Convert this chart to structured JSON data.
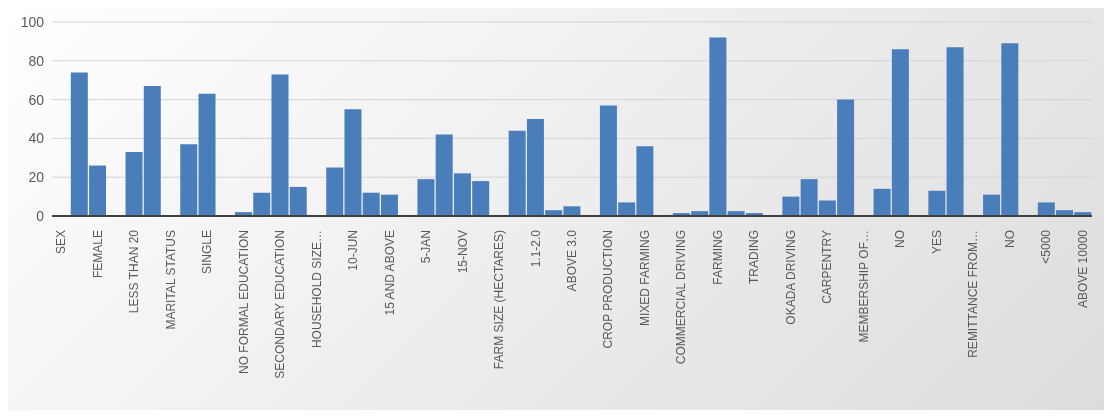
{
  "chart_data": {
    "type": "bar",
    "categories": [
      "SEX",
      null,
      "FEMALE",
      null,
      "LESS THAN 20",
      null,
      "MARITAL STATUS",
      null,
      "SINGLE",
      null,
      "NO FORMAL EDUCATION",
      null,
      "SECONDARY EDUCATION",
      null,
      "HOUSEHOLD SIZE…",
      null,
      "10-JUN",
      null,
      "15 AND ABOVE",
      null,
      "5-JAN",
      null,
      "15-NOV",
      null,
      "FARM SIZE (HECTARES)",
      null,
      "1.1-2.0",
      null,
      "ABOVE 3.0",
      null,
      "CROP PRODUCTION",
      null,
      "MIXED FARMING",
      null,
      "COMMERCIAL DRIVING",
      null,
      "FARMING",
      null,
      "TRADING",
      null,
      "OKADA DRIVING",
      null,
      "CARPENTRY",
      null,
      "MEMBERSHIP OF…",
      null,
      "NO",
      null,
      "YES",
      null,
      "REMITTANCE FROM…",
      null,
      "NO",
      null,
      "<5000",
      null,
      "ABOVE 10000"
    ],
    "values": [
      0,
      74,
      26,
      0,
      33,
      67,
      0,
      37,
      63,
      0,
      2,
      12,
      73,
      15,
      0,
      25,
      55,
      12,
      11,
      0,
      19,
      42,
      22,
      18,
      0,
      44,
      50,
      3,
      5,
      0,
      57,
      7,
      36,
      0,
      1.5,
      2.5,
      92,
      2.5,
      1.5,
      0,
      10,
      19,
      8,
      60,
      0,
      14,
      86,
      0,
      13,
      87,
      0,
      11,
      89,
      0,
      7,
      3,
      2
    ],
    "color": "#4a7ebb",
    "ylim": [
      0,
      100
    ],
    "yticks": [
      0,
      20,
      40,
      60,
      80,
      100
    ],
    "grid": "y"
  }
}
